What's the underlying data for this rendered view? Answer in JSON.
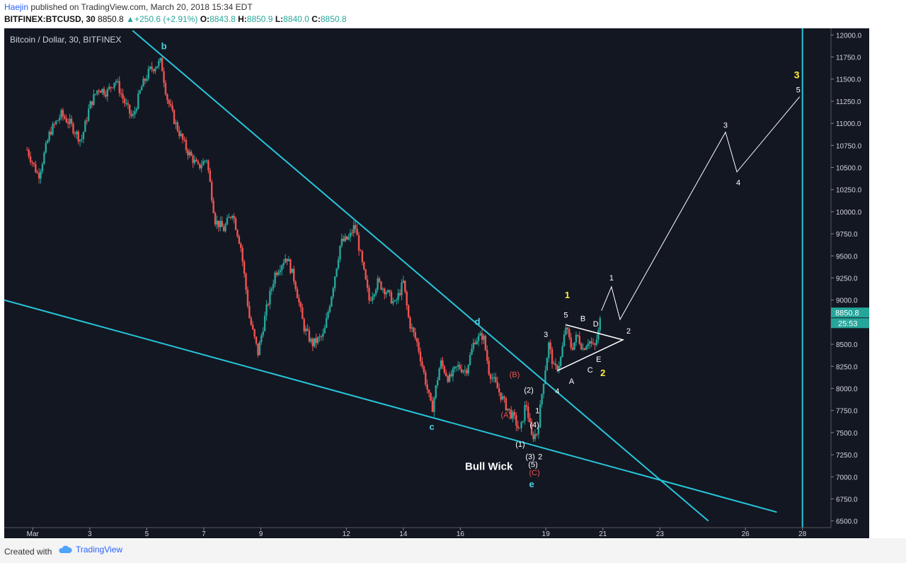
{
  "header": {
    "author": "Haejin",
    "published_text": "published on TradingView.com, March 20, 2018 15:34 EDT",
    "symbol": "BITFINEX:BTCUSD, 30",
    "last": "8850.8",
    "change": "+250.6 (+2.91%)",
    "o_label": "O:",
    "o_value": "8843.8",
    "h_label": "H:",
    "h_value": "8850.9",
    "l_label": "L:",
    "l_value": "8840.0",
    "c_label": "C:",
    "c_value": "8850.8"
  },
  "footer": {
    "created_with": "Created with",
    "brand": "TradingView"
  },
  "chart_data": {
    "type": "candlestick",
    "title": "Bitcoin / Dollar, 30, BITFINEX",
    "x_range": [
      0,
      29
    ],
    "x_ticks": [
      {
        "x": 1,
        "label": "Mar"
      },
      {
        "x": 3,
        "label": "3"
      },
      {
        "x": 5,
        "label": "5"
      },
      {
        "x": 7,
        "label": "7"
      },
      {
        "x": 9,
        "label": "9"
      },
      {
        "x": 12,
        "label": "12"
      },
      {
        "x": 14,
        "label": "14"
      },
      {
        "x": 16,
        "label": "16"
      },
      {
        "x": 19,
        "label": "19"
      },
      {
        "x": 21,
        "label": "21"
      },
      {
        "x": 23,
        "label": "23"
      },
      {
        "x": 26,
        "label": "26"
      },
      {
        "x": 28,
        "label": "28"
      }
    ],
    "y_range": [
      6425,
      12075
    ],
    "y_ticks": [
      "12000.0",
      "11750.0",
      "11500.0",
      "11250.0",
      "11000.0",
      "10750.0",
      "10500.0",
      "10250.0",
      "10000.0",
      "9750.0",
      "9500.0",
      "9250.0",
      "9000.0",
      "8750.0",
      "8500.0",
      "8250.0",
      "8000.0",
      "7750.0",
      "7500.0",
      "7250.0",
      "7000.0",
      "6750.0",
      "6500.0"
    ],
    "y_tick_values": [
      12000,
      11750,
      11500,
      11250,
      11000,
      10750,
      10500,
      10250,
      10000,
      9750,
      9500,
      9250,
      9000,
      8750,
      8500,
      8250,
      8000,
      7750,
      7500,
      7250,
      7000,
      6750,
      6500
    ],
    "price_label": "8850.8",
    "countdown_label": "25:53",
    "price_path": [
      [
        0.8,
        10700
      ],
      [
        1.2,
        10400
      ],
      [
        1.6,
        10900
      ],
      [
        2.0,
        11100
      ],
      [
        2.3,
        11000
      ],
      [
        2.7,
        10800
      ],
      [
        3.0,
        11200
      ],
      [
        3.3,
        11400
      ],
      [
        3.6,
        11350
      ],
      [
        3.9,
        11500
      ],
      [
        4.2,
        11250
      ],
      [
        4.5,
        11050
      ],
      [
        4.8,
        11400
      ],
      [
        5.1,
        11600
      ],
      [
        5.5,
        11700
      ],
      [
        5.7,
        11300
      ],
      [
        6.0,
        11000
      ],
      [
        6.4,
        10700
      ],
      [
        6.8,
        10500
      ],
      [
        7.1,
        10600
      ],
      [
        7.4,
        9900
      ],
      [
        7.7,
        9800
      ],
      [
        8.0,
        10000
      ],
      [
        8.3,
        9600
      ],
      [
        8.6,
        8800
      ],
      [
        8.9,
        8400
      ],
      [
        9.2,
        8900
      ],
      [
        9.5,
        9300
      ],
      [
        9.9,
        9500
      ],
      [
        10.2,
        9200
      ],
      [
        10.5,
        8700
      ],
      [
        10.8,
        8500
      ],
      [
        11.2,
        8600
      ],
      [
        11.5,
        9100
      ],
      [
        11.8,
        9650
      ],
      [
        12.1,
        9700
      ],
      [
        12.3,
        9850
      ],
      [
        12.5,
        9500
      ],
      [
        12.8,
        9000
      ],
      [
        13.1,
        9200
      ],
      [
        13.4,
        9100
      ],
      [
        13.7,
        8950
      ],
      [
        14.0,
        9200
      ],
      [
        14.2,
        8750
      ],
      [
        14.5,
        8500
      ],
      [
        14.7,
        8200
      ],
      [
        15.0,
        7750
      ],
      [
        15.3,
        8300
      ],
      [
        15.6,
        8100
      ],
      [
        15.9,
        8250
      ],
      [
        16.2,
        8200
      ],
      [
        16.5,
        8550
      ],
      [
        16.8,
        8600
      ],
      [
        17.0,
        8200
      ],
      [
        17.3,
        8000
      ],
      [
        17.6,
        7800
      ],
      [
        17.9,
        7650
      ],
      [
        18.1,
        7500
      ],
      [
        18.3,
        7850
      ],
      [
        18.5,
        7450
      ],
      [
        18.7,
        7500
      ],
      [
        18.9,
        8050
      ],
      [
        19.1,
        8500
      ],
      [
        19.3,
        8200
      ],
      [
        19.5,
        8300
      ],
      [
        19.7,
        8700
      ],
      [
        19.9,
        8450
      ],
      [
        20.1,
        8600
      ],
      [
        20.3,
        8450
      ],
      [
        20.5,
        8550
      ],
      [
        20.7,
        8450
      ],
      [
        20.85,
        8650
      ],
      [
        20.95,
        8880
      ]
    ],
    "trendlines": [
      {
        "name": "upper-trendline",
        "points": [
          [
            4.5,
            12050
          ],
          [
            24.7,
            6500
          ]
        ]
      },
      {
        "name": "lower-trendline",
        "points": [
          [
            0,
            9000
          ],
          [
            27.1,
            6600
          ]
        ]
      },
      {
        "name": "vertical-line",
        "points": [
          [
            28.0,
            6425
          ],
          [
            28.0,
            12075
          ]
        ]
      }
    ],
    "projection": [
      [
        20.95,
        8880
      ],
      [
        21.3,
        9150
      ],
      [
        21.6,
        8780
      ],
      [
        25.3,
        10900
      ],
      [
        25.7,
        10450
      ],
      [
        27.9,
        11300
      ]
    ],
    "triangle": [
      [
        19.4,
        8200
      ],
      [
        20.8,
        8450
      ],
      [
        21.7,
        8550
      ],
      [
        19.7,
        8720
      ]
    ],
    "annotations": [
      {
        "text": "b",
        "x": 5.6,
        "y": 11840,
        "color": "#4dd0e1",
        "size": 13,
        "bold": true
      },
      {
        "text": "c",
        "x": 15.0,
        "y": 7530,
        "color": "#4dd0e1",
        "size": 13,
        "bold": true
      },
      {
        "text": "d",
        "x": 16.6,
        "y": 8720,
        "color": "#4dd0e1",
        "size": 13,
        "bold": true
      },
      {
        "text": "e",
        "x": 18.5,
        "y": 6880,
        "color": "#4dd0e1",
        "size": 13,
        "bold": true
      },
      {
        "text": "Bull Wick",
        "x": 17.0,
        "y": 7080,
        "color": "#ffffff",
        "size": 15,
        "bold": true
      },
      {
        "text": "(A)",
        "x": 17.6,
        "y": 7670,
        "color": "#ef5350",
        "size": 11,
        "bold": false
      },
      {
        "text": "(B)",
        "x": 17.9,
        "y": 8130,
        "color": "#ef5350",
        "size": 11,
        "bold": false
      },
      {
        "text": "(C)",
        "x": 18.6,
        "y": 7020,
        "color": "#ef5350",
        "size": 11,
        "bold": false
      },
      {
        "text": "(1)",
        "x": 18.1,
        "y": 7340,
        "color": "#ffffff",
        "size": 11,
        "bold": false
      },
      {
        "text": "(2)",
        "x": 18.4,
        "y": 7950,
        "color": "#ffffff",
        "size": 11,
        "bold": false
      },
      {
        "text": "(3)",
        "x": 18.45,
        "y": 7200,
        "color": "#ffffff",
        "size": 11,
        "bold": false
      },
      {
        "text": "(4)",
        "x": 18.6,
        "y": 7560,
        "color": "#ffffff",
        "size": 11,
        "bold": false
      },
      {
        "text": "(5)",
        "x": 18.55,
        "y": 7110,
        "color": "#ffffff",
        "size": 11,
        "bold": false
      },
      {
        "text": "1",
        "x": 18.7,
        "y": 7720,
        "color": "#ffffff",
        "size": 11,
        "bold": false
      },
      {
        "text": "2",
        "x": 18.8,
        "y": 7200,
        "color": "#ffffff",
        "size": 11,
        "bold": false
      },
      {
        "text": "3",
        "x": 19.0,
        "y": 8580,
        "color": "#ffffff",
        "size": 11,
        "bold": false
      },
      {
        "text": "4",
        "x": 19.4,
        "y": 7940,
        "color": "#ffffff",
        "size": 11,
        "bold": false
      },
      {
        "text": "5",
        "x": 19.7,
        "y": 8800,
        "color": "#ffffff",
        "size": 11,
        "bold": false
      },
      {
        "text": "A",
        "x": 19.9,
        "y": 8050,
        "color": "#ffffff",
        "size": 11,
        "bold": false
      },
      {
        "text": "B",
        "x": 20.3,
        "y": 8760,
        "color": "#ffffff",
        "size": 11,
        "bold": false
      },
      {
        "text": "C",
        "x": 20.55,
        "y": 8180,
        "color": "#ffffff",
        "size": 11,
        "bold": false
      },
      {
        "text": "D",
        "x": 20.75,
        "y": 8700,
        "color": "#ffffff",
        "size": 11,
        "bold": false
      },
      {
        "text": "E",
        "x": 20.85,
        "y": 8300,
        "color": "#ffffff",
        "size": 11,
        "bold": false
      },
      {
        "text": "1",
        "x": 19.75,
        "y": 9020,
        "color": "#ffeb3b",
        "size": 13,
        "bold": true
      },
      {
        "text": "2",
        "x": 21.0,
        "y": 8140,
        "color": "#ffeb3b",
        "size": 13,
        "bold": true
      },
      {
        "text": "1",
        "x": 21.3,
        "y": 9220,
        "color": "#ffffff",
        "size": 11,
        "bold": false
      },
      {
        "text": "2",
        "x": 21.9,
        "y": 8620,
        "color": "#ffffff",
        "size": 11,
        "bold": false
      },
      {
        "text": "3",
        "x": 25.3,
        "y": 10950,
        "color": "#ffffff",
        "size": 11,
        "bold": false
      },
      {
        "text": "4",
        "x": 25.75,
        "y": 10300,
        "color": "#ffffff",
        "size": 11,
        "bold": false
      },
      {
        "text": "5",
        "x": 27.85,
        "y": 11350,
        "color": "#ffffff",
        "size": 11,
        "bold": false
      },
      {
        "text": "3",
        "x": 27.8,
        "y": 11510,
        "color": "#ffeb3b",
        "size": 14,
        "bold": true
      }
    ],
    "colors": {
      "background": "#131722",
      "up": "#26a69a",
      "down": "#ef5350",
      "trendline": "#26c6da",
      "projection": "#ffffff",
      "price_badge": "#26a69a",
      "countdown_badge": "#26a69a"
    },
    "grid": false
  }
}
